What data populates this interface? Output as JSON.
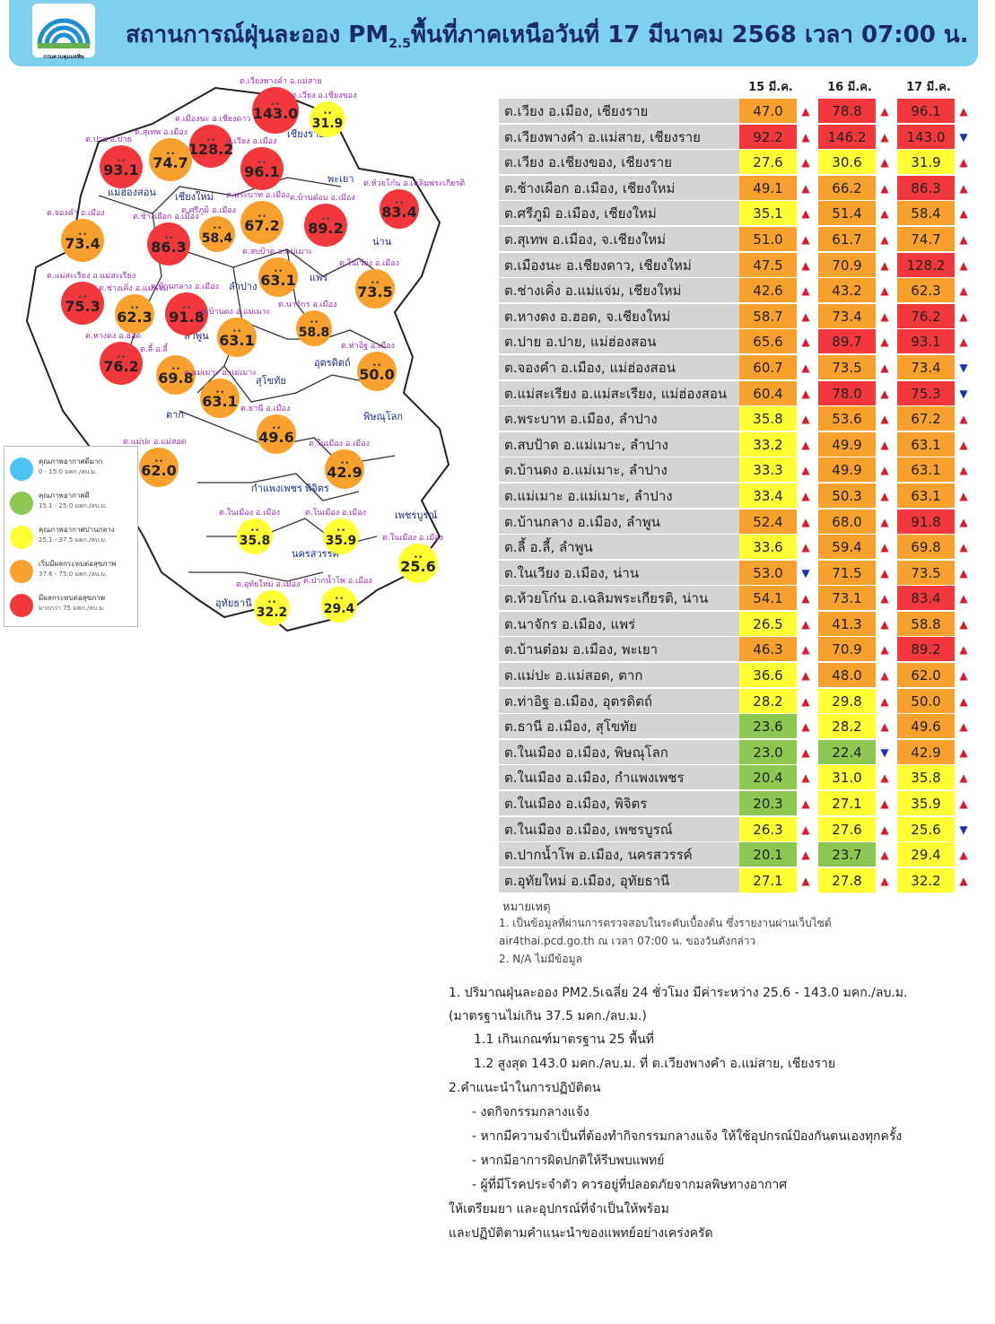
{
  "header": {
    "title_a": "สถานการณ์ฝุ่นละออง PM",
    "title_sub": "2.5",
    "title_b": "พื้นที่ภาคเหนือวันที่ 17 มีนาคม 2568 เวลา 07:00 น.",
    "logo_text": "กรมควบคุมมลพิษ",
    "colors": {
      "banner": "#7fd0ef",
      "title": "#1b2a66"
    }
  },
  "columns": [
    "15 มี.ค.",
    "16 มี.ค.",
    "17 มี.ค."
  ],
  "rows": [
    {
      "station": "ต.เวียง อ.เมือง, เชียงราย",
      "v": [
        "47.0",
        "78.8",
        "96.1"
      ],
      "t": [
        "up",
        "up",
        "up"
      ]
    },
    {
      "station": "ต.เวียงพางคำ อ.แม่สาย, เชียงราย",
      "v": [
        "92.2",
        "146.2",
        "143.0"
      ],
      "t": [
        "up",
        "up",
        "down"
      ]
    },
    {
      "station": "ต.เวียง อ.เชียงของ, เชียงราย",
      "v": [
        "27.6",
        "30.6",
        "31.9"
      ],
      "t": [
        "up",
        "up",
        "up"
      ]
    },
    {
      "station": "ต.ช้างเผือก อ.เมือง, เชียงใหม่",
      "v": [
        "49.1",
        "66.2",
        "86.3"
      ],
      "t": [
        "up",
        "up",
        "up"
      ]
    },
    {
      "station": "ต.ศรีภูมิ อ.เมือง, เชียงใหม่",
      "v": [
        "35.1",
        "51.4",
        "58.4"
      ],
      "t": [
        "up",
        "up",
        "up"
      ]
    },
    {
      "station": "ต.สุเทพ  อ.เมือง, จ.เชียงใหม่",
      "v": [
        "51.0",
        "61.7",
        "74.7"
      ],
      "t": [
        "up",
        "up",
        "up"
      ]
    },
    {
      "station": "ต.เมืองนะ อ.เชียงดาว, เชียงใหม่",
      "v": [
        "47.5",
        "70.9",
        "128.2"
      ],
      "t": [
        "up",
        "up",
        "up"
      ]
    },
    {
      "station": "ต.ช่างเคิ่ง อ.แม่แจ่ม, เชียงใหม่",
      "v": [
        "42.6",
        "43.2",
        "62.3"
      ],
      "t": [
        "up",
        "up",
        "up"
      ]
    },
    {
      "station": "ต.หางดง อ.ฮอด, จ.เชียงใหม่",
      "v": [
        "58.7",
        "73.4",
        "76.2"
      ],
      "t": [
        "up",
        "up",
        "up"
      ]
    },
    {
      "station": "ต.ปาย อ.ปาย, แม่ฮ่องสอน",
      "v": [
        "65.6",
        "89.7",
        "93.1"
      ],
      "t": [
        "up",
        "up",
        "up"
      ]
    },
    {
      "station": "ต.จองคำ อ.เมือง, แม่ฮ่องสอน",
      "v": [
        "60.7",
        "73.5",
        "73.4"
      ],
      "t": [
        "up",
        "up",
        "down"
      ]
    },
    {
      "station": "ต.แม่สะเรียง อ.แม่สะเรียง, แม่ฮ่องสอน",
      "v": [
        "60.4",
        "78.0",
        "75.3"
      ],
      "t": [
        "up",
        "up",
        "down"
      ]
    },
    {
      "station": "ต.พระบาท อ.เมือง, ลำปาง",
      "v": [
        "35.8",
        "53.6",
        "67.2"
      ],
      "t": [
        "up",
        "up",
        "up"
      ]
    },
    {
      "station": "ต.สบป้าด อ.แม่เมาะ, ลำปาง",
      "v": [
        "33.2",
        "49.9",
        "63.1"
      ],
      "t": [
        "up",
        "up",
        "up"
      ]
    },
    {
      "station": "ต.บ้านดง อ.แม่เมาะ, ลำปาง",
      "v": [
        "33.3",
        "49.9",
        "63.1"
      ],
      "t": [
        "up",
        "up",
        "up"
      ]
    },
    {
      "station": "ต.แม่เมาะ อ.แม่เมาะ, ลำปาง",
      "v": [
        "33.4",
        "50.3",
        "63.1"
      ],
      "t": [
        "up",
        "up",
        "up"
      ]
    },
    {
      "station": "ต.บ้านกลาง อ.เมือง, ลำพูน",
      "v": [
        "52.4",
        "68.0",
        "91.8"
      ],
      "t": [
        "up",
        "up",
        "up"
      ]
    },
    {
      "station": "ต.ลี้ อ.ลี้, ลำพูน",
      "v": [
        "33.6",
        "59.4",
        "69.8"
      ],
      "t": [
        "up",
        "up",
        "up"
      ]
    },
    {
      "station": "ต.ในเวียง อ.เมือง, น่าน",
      "v": [
        "53.0",
        "71.5",
        "73.5"
      ],
      "t": [
        "down",
        "up",
        "up"
      ]
    },
    {
      "station": "ต.ห้วยโก๋น อ.เฉลิมพระเกียรติ, น่าน",
      "v": [
        "54.1",
        "73.1",
        "83.4"
      ],
      "t": [
        "up",
        "up",
        "up"
      ]
    },
    {
      "station": "ต.นาจักร อ.เมือง, แพร่",
      "v": [
        "26.5",
        "41.3",
        "58.8"
      ],
      "t": [
        "up",
        "up",
        "up"
      ]
    },
    {
      "station": "ต.บ้านต๋อม อ.เมือง, พะเยา",
      "v": [
        "46.3",
        "70.9",
        "89.2"
      ],
      "t": [
        "up",
        "up",
        "up"
      ]
    },
    {
      "station": "ต.แม่ปะ อ.แม่สอด, ตาก",
      "v": [
        "36.6",
        "48.0",
        "62.0"
      ],
      "t": [
        "up",
        "up",
        "up"
      ]
    },
    {
      "station": "ต.ท่าอิฐ อ.เมือง, อุตรดิตถ์",
      "v": [
        "28.2",
        "29.8",
        "50.0"
      ],
      "t": [
        "up",
        "up",
        "up"
      ]
    },
    {
      "station": "ต.ธานี อ.เมือง, สุโขทัย",
      "v": [
        "23.6",
        "28.2",
        "49.6"
      ],
      "t": [
        "up",
        "up",
        "up"
      ]
    },
    {
      "station": "ต.ในเมือง อ.เมือง, พิษณุโลก",
      "v": [
        "23.0",
        "22.4",
        "42.9"
      ],
      "t": [
        "up",
        "down",
        "up"
      ]
    },
    {
      "station": "ต.ในเมือง อ.เมือง, กำแพงเพชร",
      "v": [
        "20.4",
        "31.0",
        "35.8"
      ],
      "t": [
        "up",
        "up",
        "up"
      ]
    },
    {
      "station": "ต.ในเมือง อ.เมือง, พิจิตร",
      "v": [
        "20.3",
        "27.1",
        "35.9"
      ],
      "t": [
        "up",
        "up",
        "up"
      ]
    },
    {
      "station": "ต.ในเมือง อ.เมือง, เพชรบูรณ์",
      "v": [
        "26.3",
        "27.6",
        "25.6"
      ],
      "t": [
        "up",
        "up",
        "down"
      ]
    },
    {
      "station": "ต.ปากน้ำโพ อ.เมือง, นครสวรรค์",
      "v": [
        "20.1",
        "23.7",
        "29.4"
      ],
      "t": [
        "up",
        "up",
        "up"
      ]
    },
    {
      "station": "ต.อุทัยใหม่ อ.เมือง, อุทัยธานี",
      "v": [
        "27.1",
        "27.8",
        "32.2"
      ],
      "t": [
        "up",
        "up",
        "up"
      ]
    }
  ],
  "level_colors": {
    "green": "#8cc751",
    "yellow": "#ffff33",
    "orange": "#f9a12e",
    "red": "#f2373d",
    "blue": "#4fc3f7"
  },
  "arrows": {
    "up": "▲",
    "down": "▼"
  },
  "notes": {
    "heading": "หมายเหตุ",
    "line1": "1. เป็นข้อมูลที่ผ่านการตรวจสอบในระดับเบื้องต้น  ซึ่งรายงานผ่านเว็บไซต์",
    "line2": "air4thai.pcd.go.th  ณ  เวลา 07:00  น.  ของวันดังกล่าว",
    "line3": "2.  N/A  ไม่มีข้อมูล"
  },
  "summary": {
    "s1": "1. ปริมาณฝุ่นละออง PM2.5เฉลี่ย 24 ชั่วโมง มีค่าระหว่าง 25.6 - 143.0 มคก./ลบ.ม.",
    "s2": "(มาตรฐานไม่เกิน 37.5 มคก./ลบ.ม.)",
    "s3": "1.1 เกินเกณฑ์มาตรฐาน 25 พื้นที่",
    "s4": "1.2 สูงสุด 143.0 มคก./ลบ.ม. ที่ ต.เวียงพางคำ อ.แม่สาย, เชียงราย",
    "s5": "2.คำแนะนำในการปฏิบัติตน",
    "s6": "-  งดกิจกรรมกลางแจ้ง",
    "s7": "-  หากมีความจำเป็นที่ต้องทำกิจกรรมกลางแจ้ง ให้ใช้อุปกรณ์ป้องกันตนเองทุกครั้ง",
    "s8": "-  หากมีอาการผิดปกติให้รีบพบแพทย์",
    "s9": "-  ผู้ที่มีโรคประจำตัว ควรอยู่ที่ปลอดภัยจากมลพิษทางอากาศ",
    "s10": "ให้เตรียมยา  และอุปกรณ์ที่จำเป็นให้พร้อม",
    "s11": "และปฏิบัติตามคำแนะนำของแพทย์อย่างเคร่งครัด"
  },
  "legend": [
    {
      "title": "คุณภาพอากาศดีมาก",
      "range": "0 - 15.0 มคก./ลบ.ม.",
      "color": "#4fc3f7"
    },
    {
      "title": "คุณภาพอากาศดี",
      "range": "15.1 - 25.0 มคก./ลบ.ม.",
      "color": "#8cc751"
    },
    {
      "title": "คุณภาพอากาศปานกลาง",
      "range": "25.1 - 37.5 มคก./ลบ.ม.",
      "color": "#ffff33"
    },
    {
      "title": "เริ่มมีผลกระทบต่อสุขภาพ",
      "range": "37.6 - 75.0 มคก./ลบ.ม.",
      "color": "#f9a12e"
    },
    {
      "title": "มีผลกระทบต่อสุขภาพ",
      "range": "มากกว่า 75 มคก./ลบ.ม.",
      "color": "#f2373d"
    }
  ],
  "map": {
    "provinces": [
      "เชียงราย",
      "แม่ฮ่องสอน",
      "เชียงใหม่",
      "พะเยา",
      "น่าน",
      "ลำปาง",
      "แพร่",
      "ลำพูน",
      "อุตรดิตถ์",
      "สุโขทัย",
      "ตาก",
      "พิษณุโลก",
      "กำแพงเพชร",
      "พิจิตร",
      "เพชรบูรณ์",
      "นครสวรรค์",
      "อุทัยธานี"
    ],
    "stations": [
      {
        "label": "ต.เวียงพางคำ อ.แม่สาย",
        "value": "143.0"
      },
      {
        "label": "ต.เวียง อ.เชียงของ",
        "value": "31.9"
      },
      {
        "label": "ต.เมืองนะ อ.เชียงดาว",
        "value": "128.2"
      },
      {
        "label": "ต.สุเทพ อ.เมือง",
        "value": "74.7"
      },
      {
        "label": "ต.ปาย อ.ปาย",
        "value": "93.1"
      },
      {
        "label": "ต.เวียง อ.เมือง",
        "value": "96.1"
      },
      {
        "label": "ต.ห้วยโก๋น อ.เฉลิมพระเกียรติ",
        "value": "83.4"
      },
      {
        "label": "ต.จองคำ อ.เมือง",
        "value": "73.4"
      },
      {
        "label": "ต.ช้างเผือก อ.เมือง",
        "value": "86.3"
      },
      {
        "label": "ต.ศรีภูมิ อ.เมือง",
        "value": "58.4"
      },
      {
        "label": "ต.พระบาท อ.เมือง",
        "value": "67.2"
      },
      {
        "label": "ต.บ้านต๋อม อ.เมือง",
        "value": "89.2"
      },
      {
        "label": "ต.สบป้าด อ.แม่เมาะ",
        "value": "63.1"
      },
      {
        "label": "ต.ในเวียง อ.เมือง",
        "value": "73.5"
      },
      {
        "label": "ต.แม่สะเรียง อ.แม่สะเรียง",
        "value": "75.3"
      },
      {
        "label": "ต.ช่างเคิ่ง อ.แม่แจ่ม",
        "value": "62.3"
      },
      {
        "label": "ต.บ้านกลาง อ.เมือง",
        "value": "91.8"
      },
      {
        "label": "ต.บ้านดง อ.แม่เมาะ",
        "value": "63.1"
      },
      {
        "label": "ต.นาจักร อ.เมือง",
        "value": "58.8"
      },
      {
        "label": "ต.หางดง อ.ฮอด",
        "value": "76.2"
      },
      {
        "label": "ต.ลี้ อ.ลี้",
        "value": "69.8"
      },
      {
        "label": "ต.แม่เมาะ อ.แม่เมาะ",
        "value": "63.1"
      },
      {
        "label": "ต.ท่าอิฐ อ.เมือง",
        "value": "50.0"
      },
      {
        "label": "ต.ธานี อ.เมือง",
        "value": "49.6"
      },
      {
        "label": "ต.แม่ปะ อ.แม่สอด",
        "value": "62.0"
      },
      {
        "label": "ต.ในเมือง อ.เมือง",
        "value": "42.9"
      },
      {
        "label": "ต.ในเมือง อ.เมือง",
        "value": "35.8"
      },
      {
        "label": "ต.ในเมือง อ.เมือง",
        "value": "35.9"
      },
      {
        "label": "ต.ในเมือง อ.เมือง",
        "value": "25.6"
      },
      {
        "label": "ต.อุทัยใหม่ อ.เมือง",
        "value": "32.2"
      },
      {
        "label": "ต.ปากน้ำโพ อ.เมือง",
        "value": "29.4"
      }
    ]
  }
}
